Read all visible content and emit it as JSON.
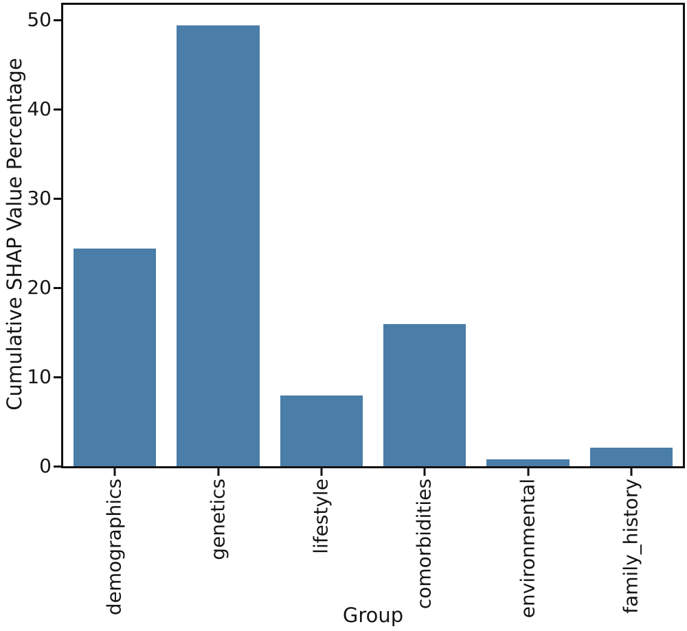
{
  "figure": {
    "background_color": "#ffffff",
    "spine_color": "#111111",
    "text_color": "#151515"
  },
  "chart_data": {
    "type": "bar",
    "title": "",
    "xlabel": "Group",
    "ylabel": "Cumulative SHAP Value Percentage",
    "categories": [
      "demographics",
      "genetics",
      "lifestyle",
      "comorbidities",
      "environmental",
      "family_history"
    ],
    "values": [
      24.4,
      49.4,
      7.9,
      15.9,
      0.8,
      2.1
    ],
    "bar_color": "#4A7DA8",
    "bar_width_fraction": 0.8,
    "ylim": [
      0,
      51.7
    ],
    "yticks": [
      0,
      10,
      20,
      30,
      40,
      50
    ],
    "x_tick_label_rotation_deg": 90,
    "grid": false,
    "legend": null
  }
}
